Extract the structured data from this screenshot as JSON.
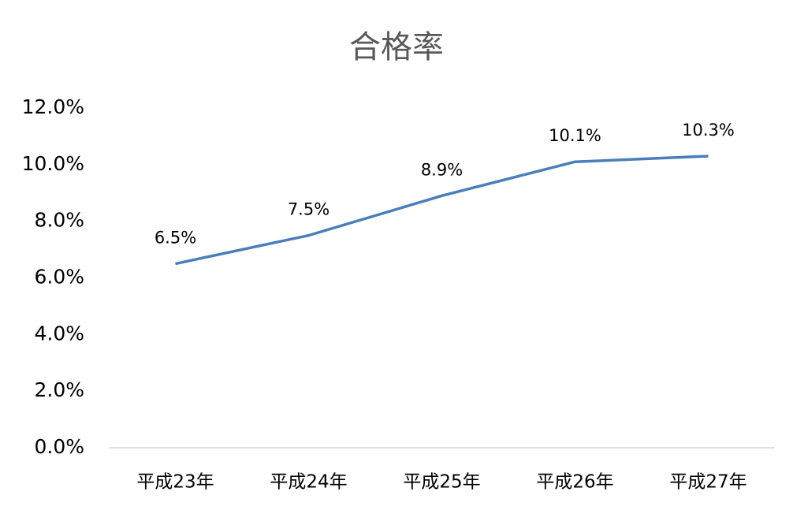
{
  "chart_data": {
    "type": "line",
    "title": "合格率",
    "categories": [
      "平成23年",
      "平成24年",
      "平成25年",
      "平成26年",
      "平成27年"
    ],
    "series": [
      {
        "name": "合格率",
        "color": "#4a7ebb",
        "values": [
          6.5,
          7.5,
          8.9,
          10.1,
          10.3
        ],
        "value_labels": [
          "6.5%",
          "7.5%",
          "8.9%",
          "10.1%",
          "10.3%"
        ]
      }
    ],
    "ylim": [
      0,
      12
    ],
    "yticks": [
      {
        "value": 0,
        "label": "0.0%"
      },
      {
        "value": 2,
        "label": "2.0%"
      },
      {
        "value": 4,
        "label": "4.0%"
      },
      {
        "value": 6,
        "label": "6.0%"
      },
      {
        "value": 8,
        "label": "8.0%"
      },
      {
        "value": 10,
        "label": "10.0%"
      },
      {
        "value": 12,
        "label": "12.0%"
      }
    ],
    "grid": false
  }
}
